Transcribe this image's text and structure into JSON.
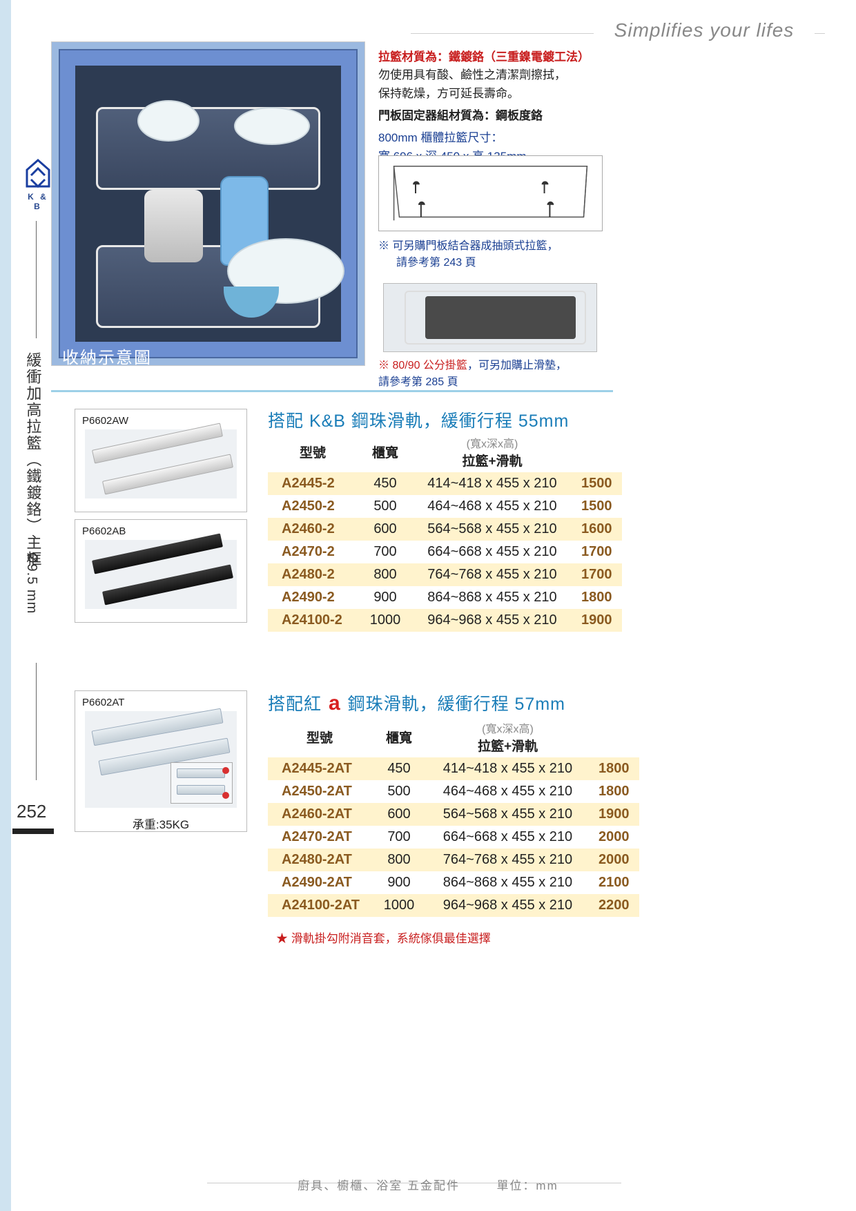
{
  "header": {
    "slogan": "Simplifies your lifes"
  },
  "brand": {
    "name": "K & B"
  },
  "sidebar": {
    "title": "緩衝加高拉籃（鐵鍍鉻）主框",
    "spec": "Ø9.5 mm",
    "page": "252"
  },
  "hero": {
    "caption": "收納示意圖"
  },
  "info": {
    "material_label": "拉籃材質為：",
    "material_value": "鐵鍍鉻（三重鎳電鍍工法）",
    "warning1": "勿使用具有酸、鹼性之清潔劑擦拭，",
    "warning2": "保持乾燥，方可延長壽命。",
    "plate_label": "門板固定器組材質為：鋼板度鉻",
    "size_label": "800mm 櫃體拉籃尺寸：",
    "size_value": "寬 696 x 深 450 x 高 135mm",
    "note1a": "※ 可另購門板結合器成抽頭式拉籃，",
    "note1b": "請參考第 243 頁",
    "note2a": "※ 80/90 公分掛籃",
    "note2b": "，可另加購止滑墊，",
    "note2c": "請參考第 285 頁"
  },
  "cards": [
    {
      "label": "P6602AW"
    },
    {
      "label": "P6602AB"
    },
    {
      "label": "P6602AT",
      "caption": "承重:35KG"
    }
  ],
  "table1": {
    "title": "搭配 K&B 鋼珠滑軌，緩衝行程 55mm",
    "col_model": "型號",
    "col_width": "櫃寬",
    "col_dim_hint": "(寬x深x高)",
    "col_dim": "拉籃+滑軌",
    "rows": [
      {
        "m": "A2445-2",
        "w": "450",
        "d": "414~418 x 455 x 210",
        "p": "1500",
        "hl": true
      },
      {
        "m": "A2450-2",
        "w": "500",
        "d": "464~468 x 455 x 210",
        "p": "1500",
        "hl": false
      },
      {
        "m": "A2460-2",
        "w": "600",
        "d": "564~568 x 455 x 210",
        "p": "1600",
        "hl": true
      },
      {
        "m": "A2470-2",
        "w": "700",
        "d": "664~668 x 455 x 210",
        "p": "1700",
        "hl": false
      },
      {
        "m": "A2480-2",
        "w": "800",
        "d": "764~768 x 455 x 210",
        "p": "1700",
        "hl": true
      },
      {
        "m": "A2490-2",
        "w": "900",
        "d": "864~868 x 455 x 210",
        "p": "1800",
        "hl": false
      },
      {
        "m": "A24100-2",
        "w": "1000",
        "d": "964~968 x 455 x 210",
        "p": "1900",
        "hl": true
      }
    ]
  },
  "table2": {
    "title_pre": "搭配紅 ",
    "title_a": "a",
    "title_post": " 鋼珠滑軌，緩衝行程 57mm",
    "col_model": "型號",
    "col_width": "櫃寬",
    "col_dim_hint": "(寬x深x高)",
    "col_dim": "拉籃+滑軌",
    "rows": [
      {
        "m": "A2445-2AT",
        "w": "450",
        "d": "414~418 x 455 x 210",
        "p": "1800",
        "hl": true
      },
      {
        "m": "A2450-2AT",
        "w": "500",
        "d": "464~468 x 455 x 210",
        "p": "1800",
        "hl": false
      },
      {
        "m": "A2460-2AT",
        "w": "600",
        "d": "564~568 x 455 x 210",
        "p": "1900",
        "hl": true
      },
      {
        "m": "A2470-2AT",
        "w": "700",
        "d": "664~668 x 455 x 210",
        "p": "2000",
        "hl": false
      },
      {
        "m": "A2480-2AT",
        "w": "800",
        "d": "764~768 x 455 x 210",
        "p": "2000",
        "hl": true
      },
      {
        "m": "A2490-2AT",
        "w": "900",
        "d": "864~868 x 455 x 210",
        "p": "2100",
        "hl": false
      },
      {
        "m": "A24100-2AT",
        "w": "1000",
        "d": "964~968 x 455 x 210",
        "p": "2200",
        "hl": true
      }
    ],
    "note": "★ 滑軌掛勾附消音套，系統傢俱最佳選擇"
  },
  "footer": {
    "left": "廚具、櫥櫃、浴室 五金配件",
    "right": "單位：mm"
  }
}
